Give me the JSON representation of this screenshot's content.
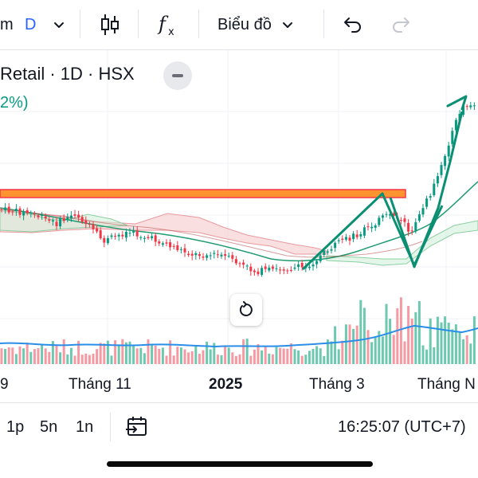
{
  "toolbar": {
    "left_fragment": "m",
    "interval": "D",
    "chart_type_label": "Biểu đồ"
  },
  "legend": {
    "title": "Retail · 1D · HSX",
    "change": "2%)"
  },
  "time_axis": {
    "labels": [
      "9",
      "Tháng 11",
      "2025",
      "Tháng 3",
      "Tháng N"
    ]
  },
  "bottom_bar": {
    "ranges": [
      "1p",
      "5n",
      "1n"
    ],
    "clock": "16:25:07 (UTC+7)"
  },
  "colors": {
    "up": "#089981",
    "down": "#f23645",
    "accent_blue": "#2962ff",
    "drawing_green": "#0b8f73",
    "resistance_line": "#ff8a1f",
    "volume_avg": "#2a8ee8"
  },
  "icons": {
    "interval_caret": "chevron-down-icon",
    "candles": "candlestick-icon",
    "indicators": "fx-icon",
    "chart_caret": "chevron-down-icon",
    "undo": "undo-icon",
    "redo": "redo-icon",
    "collapse": "minus-icon",
    "reset": "reset-icon",
    "date_range": "calendar-jump-icon"
  }
}
